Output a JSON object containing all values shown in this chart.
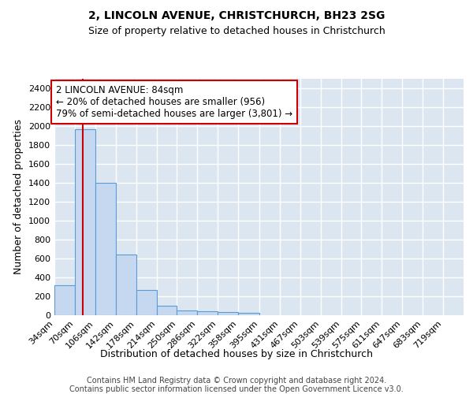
{
  "title1": "2, LINCOLN AVENUE, CHRISTCHURCH, BH23 2SG",
  "title2": "Size of property relative to detached houses in Christchurch",
  "xlabel": "Distribution of detached houses by size in Christchurch",
  "ylabel": "Number of detached properties",
  "bar_edges": [
    34,
    70,
    106,
    142,
    178,
    214,
    250,
    286,
    322,
    358,
    395,
    431,
    467,
    503,
    539,
    575,
    611,
    647,
    683,
    719,
    755
  ],
  "bar_heights": [
    320,
    1970,
    1400,
    645,
    270,
    100,
    48,
    38,
    35,
    22,
    0,
    0,
    0,
    0,
    0,
    0,
    0,
    0,
    0,
    0
  ],
  "bar_color": "#c5d8f0",
  "bar_edgecolor": "#5b9bd5",
  "subject_size": 84,
  "vline_color": "#cc0000",
  "annotation_line1": "2 LINCOLN AVENUE: 84sqm",
  "annotation_line2": "← 20% of detached houses are smaller (956)",
  "annotation_line3": "79% of semi-detached houses are larger (3,801) →",
  "annotation_box_edgecolor": "#cc0000",
  "ylim_max": 2500,
  "yticks": [
    0,
    200,
    400,
    600,
    800,
    1000,
    1200,
    1400,
    1600,
    1800,
    2000,
    2200,
    2400
  ],
  "footer1": "Contains HM Land Registry data © Crown copyright and database right 2024.",
  "footer2": "Contains public sector information licensed under the Open Government Licence v3.0.",
  "plot_bg_color": "#dce6f1",
  "grid_color": "#ffffff",
  "title1_fontsize": 10,
  "title2_fontsize": 9,
  "axis_label_fontsize": 9,
  "tick_fontsize": 8,
  "annotation_fontsize": 8.5,
  "footer_fontsize": 7
}
